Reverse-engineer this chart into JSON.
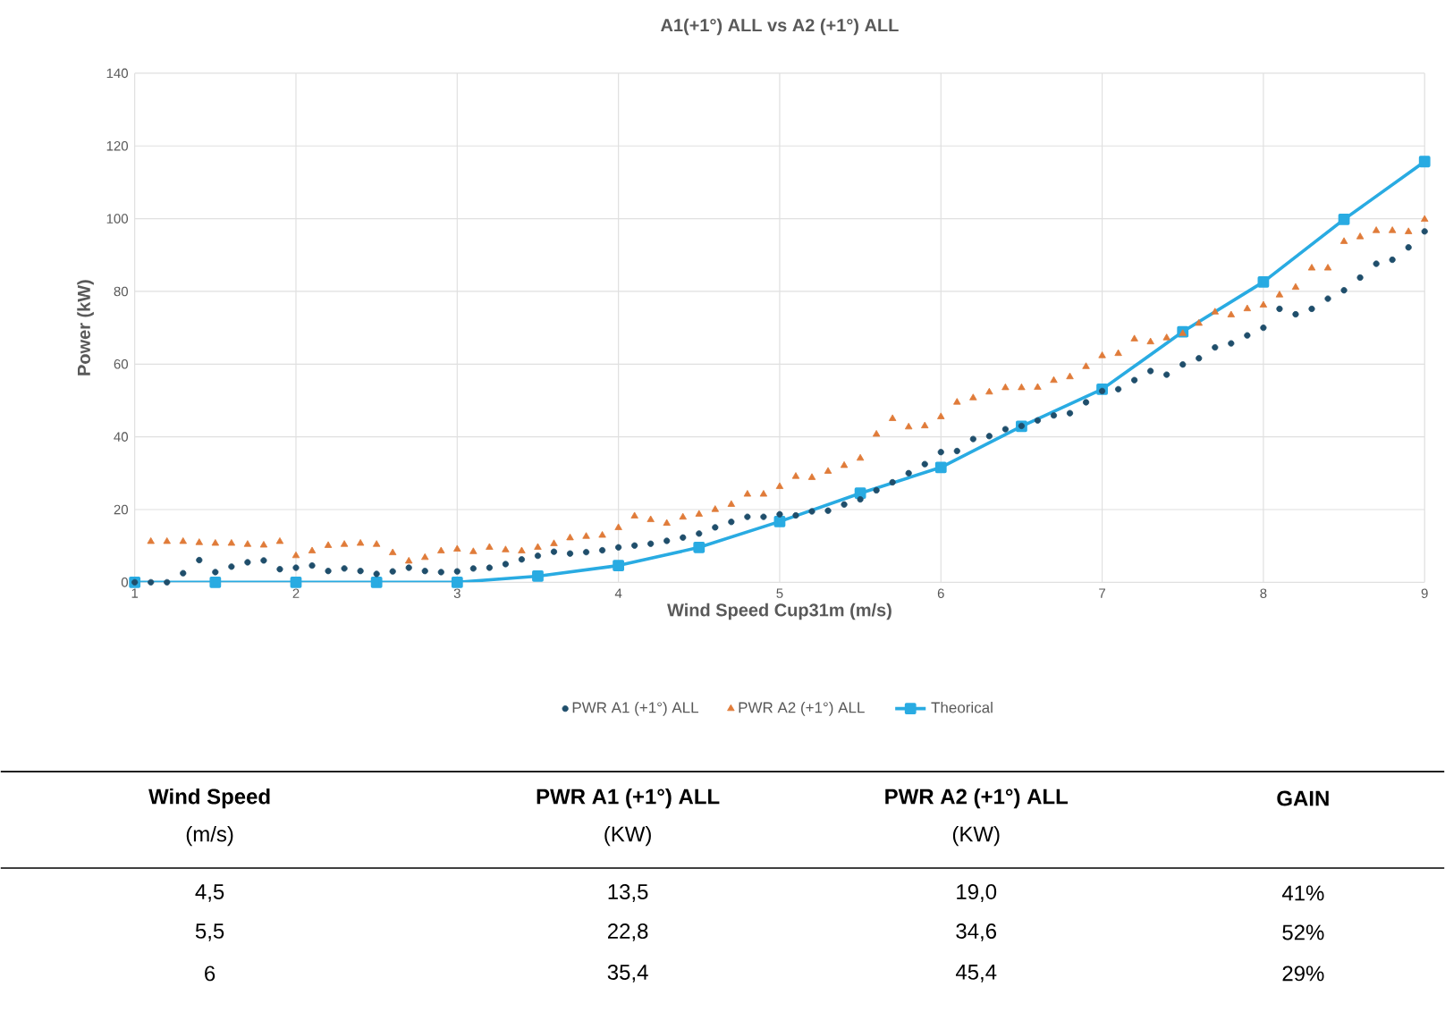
{
  "chart_data": {
    "type": "scatter",
    "title": "A1(+1°) ALL vs A2 (+1°) ALL",
    "xlabel": "Wind Speed Cup31m (m/s)",
    "ylabel": "Power (kW)",
    "xlim": [
      1,
      9
    ],
    "xticks": [
      1,
      2,
      3,
      4,
      5,
      6,
      7,
      8,
      9
    ],
    "ylim": [
      0,
      140
    ],
    "yticks": [
      0,
      20,
      40,
      60,
      80,
      100,
      120,
      140
    ],
    "grid": true,
    "legend": "bottom",
    "series": [
      {
        "name": "PWR A1 (+1°) ALL",
        "color": "#1f4e6b",
        "marker": "circle",
        "x": [
          1.0,
          1.1,
          1.2,
          1.3,
          1.4,
          1.5,
          1.6,
          1.7,
          1.8,
          1.9,
          2.0,
          2.1,
          2.2,
          2.3,
          2.4,
          2.5,
          2.6,
          2.7,
          2.8,
          2.9,
          3.0,
          3.1,
          3.2,
          3.3,
          3.4,
          3.5,
          3.6,
          3.7,
          3.8,
          3.9,
          4.0,
          4.1,
          4.2,
          4.3,
          4.4,
          4.5,
          4.6,
          4.7,
          4.8,
          4.9,
          5.0,
          5.1,
          5.2,
          5.3,
          5.4,
          5.5,
          5.6,
          5.7,
          5.8,
          5.9,
          6.0,
          6.1,
          6.2,
          6.3,
          6.4,
          6.5,
          6.6,
          6.7,
          6.8,
          6.9,
          7.0,
          7.1,
          7.2,
          7.3,
          7.4,
          7.5,
          7.6,
          7.7,
          7.8,
          7.9,
          8.0,
          8.1,
          8.2,
          8.3,
          8.4,
          8.5,
          8.6,
          8.7,
          8.8,
          8.9,
          9.0
        ],
        "values": [
          0,
          0,
          0,
          2.5,
          6.1,
          2.8,
          4.3,
          5.5,
          6,
          3.6,
          4,
          4.6,
          3.1,
          3.8,
          3.1,
          2.3,
          3,
          4,
          3.1,
          2.8,
          3,
          3.8,
          4,
          5,
          6.3,
          7.3,
          8.4,
          7.9,
          8.3,
          8.8,
          9.6,
          10.1,
          10.6,
          11.4,
          12.3,
          13.4,
          15.1,
          16.6,
          18.0,
          18.0,
          18.7,
          18.4,
          19.5,
          19.7,
          21.4,
          22.8,
          25.3,
          27.5,
          30.0,
          32.5,
          35.8,
          36.1,
          39.4,
          40.2,
          42.1,
          43.0,
          44.5,
          45.9,
          46.5,
          49.5,
          52.6,
          53.1,
          55.6,
          58.1,
          57.1,
          59.9,
          61.6,
          64.6,
          65.7,
          67.9,
          70.0,
          75.2,
          73.7,
          75.2,
          78.0,
          80.3,
          83.8,
          87.6,
          88.7,
          92.1,
          96.5
        ]
      },
      {
        "name": "PWR A2 (+1°)  ALL",
        "color": "#e07b39",
        "marker": "triangle",
        "x": [
          1.1,
          1.2,
          1.3,
          1.4,
          1.5,
          1.6,
          1.7,
          1.8,
          1.9,
          2.0,
          2.1,
          2.2,
          2.3,
          2.4,
          2.5,
          2.6,
          2.7,
          2.8,
          2.9,
          3.0,
          3.1,
          3.2,
          3.3,
          3.4,
          3.5,
          3.6,
          3.7,
          3.8,
          3.9,
          4.0,
          4.1,
          4.2,
          4.3,
          4.4,
          4.5,
          4.6,
          4.7,
          4.8,
          4.9,
          5.0,
          5.1,
          5.2,
          5.3,
          5.4,
          5.5,
          5.6,
          5.7,
          5.8,
          5.9,
          6.0,
          6.1,
          6.2,
          6.3,
          6.4,
          6.5,
          6.6,
          6.7,
          6.8,
          6.9,
          7.0,
          7.1,
          7.2,
          7.3,
          7.4,
          7.5,
          7.6,
          7.7,
          7.8,
          7.9,
          8.0,
          8.1,
          8.2,
          8.3,
          8.4,
          8.5,
          8.6,
          8.7,
          8.8,
          8.9,
          9.0
        ],
        "values": [
          11.2,
          11.2,
          11.2,
          10.9,
          10.7,
          10.7,
          10.4,
          10.2,
          11.2,
          7.3,
          8.6,
          10.1,
          10.4,
          10.7,
          10.4,
          8.1,
          5.8,
          6.8,
          8.6,
          9.1,
          8.4,
          9.6,
          8.9,
          8.6,
          9.6,
          10.6,
          12.2,
          12.6,
          12.9,
          15.0,
          18.2,
          17.2,
          16.2,
          17.9,
          18.7,
          20.0,
          21.4,
          24.2,
          24.2,
          26.3,
          29.1,
          28.8,
          30.5,
          32.1,
          34.1,
          40.7,
          45.0,
          42.7,
          43.0,
          45.5,
          49.5,
          50.7,
          52.3,
          53.5,
          53.5,
          53.6,
          55.5,
          56.5,
          59.3,
          62.3,
          62.9,
          66.9,
          66.1,
          67.2,
          68.4,
          71.2,
          74.3,
          73.5,
          75.2,
          76.2,
          79.0,
          81.1,
          86.4,
          86.4,
          93.7,
          95.0,
          96.7,
          96.7,
          96.4,
          99.8
        ]
      },
      {
        "name": "Theorical",
        "color": "#29abe2",
        "type": "line",
        "marker": "square",
        "line_style": "solid",
        "x": [
          1,
          1.5,
          2,
          2.5,
          3,
          3.5,
          4,
          4.5,
          5,
          5.5,
          6,
          6.5,
          7,
          7.5,
          8,
          8.5,
          9
        ],
        "values": [
          0,
          0,
          0,
          0,
          0,
          1.7,
          4.6,
          9.6,
          16.7,
          24.5,
          31.6,
          42.9,
          53.1,
          68.9,
          82.6,
          99.8,
          115.7
        ]
      }
    ],
    "annotations": [
      "Wind Speed",
      "PWR A1 (+1°) ALL",
      "PWR A2 (+1°)  ALL",
      "GAIN",
      "(m/s)",
      "(KW)",
      "(KW)",
      "4,5",
      "13,5",
      "19,0",
      "41%",
      "5,5",
      "22,8",
      "34,6",
      "52%",
      "6",
      "35,4",
      "45,4",
      "29%"
    ]
  }
}
